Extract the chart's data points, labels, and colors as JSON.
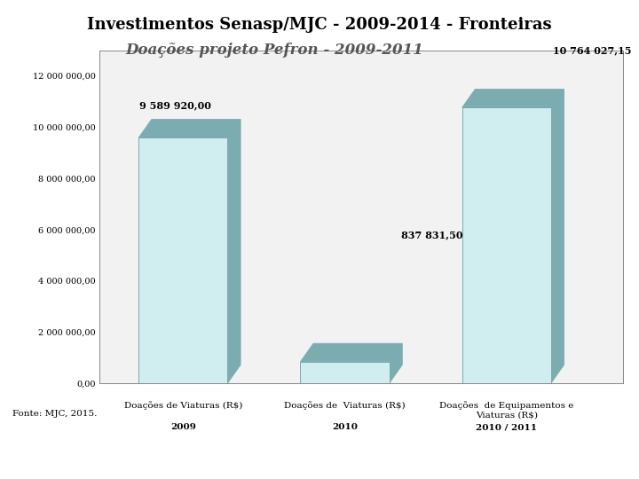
{
  "title": "Investimentos Senasp/MJC - 2009-2014 - Fronteiras",
  "subtitle": "Doações projeto Pefron - 2009-2011",
  "categories_line1": [
    "Doações de Viaturas (R$)",
    "Doações de  Viaturas (R$)",
    "Doações  de Equipamentos e\nViaturas (R$)"
  ],
  "categories_line2": [
    "2009",
    "2010",
    "2010 / 2011"
  ],
  "values": [
    9589920.0,
    837831.5,
    10764027.15
  ],
  "bar_labels": [
    "9 589 920,00",
    "837 831,50",
    "10 764 027,15"
  ],
  "bar_face_color": "#d0edf0",
  "bar_top_color": "#7aacb0",
  "bar_side_color": "#7aacb0",
  "bar_edge_color": "#7aacb0",
  "ylim": [
    0,
    13000000
  ],
  "ytick_values": [
    0,
    2000000,
    4000000,
    6000000,
    8000000,
    10000000,
    12000000
  ],
  "ytick_labels": [
    "0,00",
    "2 000 000,00",
    "4 000 000,00",
    "6 000 000,00",
    "8 000 000,00",
    "10 000 000,00",
    "12 000 000,00"
  ],
  "title_fontsize": 13,
  "subtitle_fontsize": 12,
  "label_fontsize": 8,
  "fonte": "Fonte: MJC, 2015.",
  "bg_color": "#f2f2f2",
  "chart_bg": "#ffffff"
}
